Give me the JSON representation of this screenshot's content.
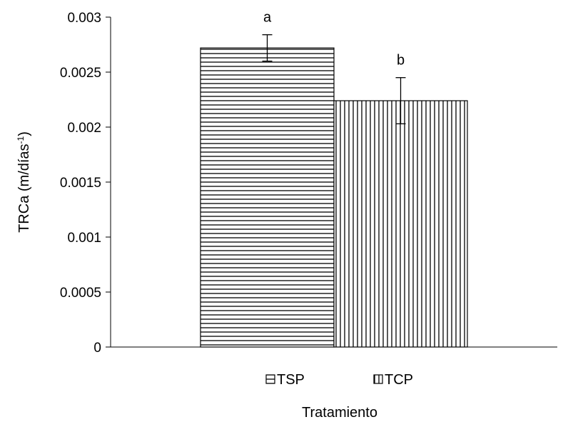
{
  "chart_data": {
    "type": "bar",
    "categories": [
      "TSP",
      "TCP"
    ],
    "values": [
      0.00272,
      0.00224
    ],
    "error": [
      0.00012,
      0.00021
    ],
    "significance_labels": [
      "a",
      "b"
    ],
    "title": "",
    "xlabel": "Tratamiento",
    "ylabel_main": "TRCa (m/días",
    "ylabel_sup": "-1",
    "ylabel_close": ")",
    "ylim": [
      0,
      0.003
    ],
    "yticks": [
      0,
      0.0005,
      0.001,
      0.0015,
      0.002,
      0.0025,
      0.003
    ],
    "ytick_labels": [
      "0",
      "0.0005",
      "0.001",
      "0.0015",
      "0.002",
      "0.0025",
      "0.003"
    ],
    "patterns": [
      "horizontal-lines",
      "vertical-lines"
    ],
    "legend": {
      "position": "bottom",
      "entries": [
        "TSP",
        "TCP"
      ]
    },
    "grid": false
  }
}
